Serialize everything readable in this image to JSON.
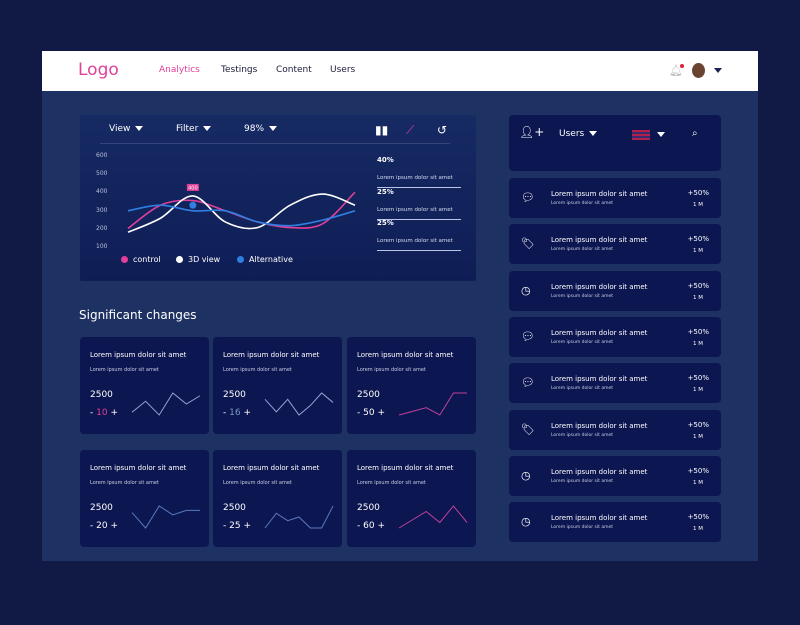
{
  "header": {
    "logo": "Logo",
    "nav": [
      "Analytics",
      "Testings",
      "Content",
      "Users"
    ],
    "active_color": "#e0409a"
  },
  "chart_toolbar": {
    "view": "View",
    "filter": "Filter",
    "zoom": "98%"
  },
  "chart_data": {
    "type": "line",
    "y_ticks": [
      600,
      500,
      400,
      300,
      200,
      100
    ],
    "ylim": [
      100,
      600
    ],
    "series": [
      {
        "name": "control",
        "color": "#e0409a",
        "values": [
          205,
          330,
          355,
          300,
          240,
          210,
          230,
          400
        ]
      },
      {
        "name": "3D view",
        "color": "#ffffff",
        "values": [
          185,
          260,
          380,
          240,
          210,
          330,
          390,
          330
        ]
      },
      {
        "name": "Alternative",
        "color": "#2f7fe0",
        "values": [
          300,
          330,
          300,
          300,
          240,
          220,
          250,
          300
        ]
      }
    ],
    "tooltip": "400"
  },
  "stats": [
    {
      "value": "40%",
      "label": "Lorem ipsum dolor sit amet"
    },
    {
      "value": "25%",
      "label": "Lorem ipsum dolor sit amet"
    },
    {
      "value": "25%",
      "label": "Lorem ipsum dolor sit amet"
    }
  ],
  "section_title": "Significant changes",
  "cards": [
    {
      "title": "Lorem ipsum dolor sit amet",
      "sub": "Lorem ipsum dolor sit amet",
      "num": "2500",
      "minus": "-",
      "count": "10",
      "plus": "+",
      "count_color": "#e0409a",
      "spark_color": "#8fa3d8",
      "spark": [
        2,
        6,
        1,
        9,
        5,
        8
      ]
    },
    {
      "title": "Lorem ipsum dolor sit amet",
      "sub": "Lorem ipsum dolor sit amet",
      "num": "2500",
      "minus": "-",
      "count": "16",
      "plus": "+",
      "count_color": "#7f93c9",
      "spark_color": "#8fa3d8",
      "spark": [
        7,
        3,
        7,
        2,
        5,
        9,
        6
      ]
    },
    {
      "title": "Lorem ipsum dolor sit amet",
      "sub": "Lorem ipsum dolor sit amet",
      "num": "2500",
      "minus": "-",
      "count": "50",
      "plus": "+",
      "count_color": "#ffffff",
      "spark_color": "#c0409a",
      "spark": [
        2,
        3,
        4,
        2,
        8,
        8
      ]
    },
    {
      "title": "Lorem ipsum dolor sit amet",
      "sub": "Lorem ipsum dolor sit amet",
      "num": "2500",
      "minus": "-",
      "count": "20",
      "plus": "+",
      "count_color": "#ffffff",
      "spark_color": "#5a78c0",
      "spark": [
        8,
        1,
        11,
        7,
        9,
        9
      ]
    },
    {
      "title": "Lorem ipsum dolor sit amet",
      "sub": "Lorem ipsum dolor sit amet",
      "num": "2500",
      "minus": "-",
      "count": "25",
      "plus": "+",
      "count_color": "#ffffff",
      "spark_color": "#5a78c0",
      "spark": [
        1,
        5,
        3,
        4,
        1,
        1,
        7
      ]
    },
    {
      "title": "Lorem ipsum dolor sit amet",
      "sub": "Lorem ipsum dolor sit amet",
      "num": "2500",
      "minus": "-",
      "count": "60",
      "plus": "+",
      "count_color": "#ffffff",
      "spark_color": "#c0409a",
      "spark": [
        1,
        4,
        7,
        3,
        9,
        3
      ]
    }
  ],
  "users_panel": {
    "label": "Users"
  },
  "rows": [
    {
      "icon": "chat",
      "title": "Lorem ipsum dolor sit amet",
      "sub": "Lorem ipsum dolor sit amet",
      "pct": "+50%",
      "amt": "1 M"
    },
    {
      "icon": "tag",
      "title": "Lorem ipsum dolor sit amet",
      "sub": "Lorem ipsum dolor sit amet",
      "pct": "+50%",
      "amt": "1 M"
    },
    {
      "icon": "clock",
      "title": "Lorem ipsum dolor sit amet",
      "sub": "Lorem ipsum dolor sit amet",
      "pct": "+50%",
      "amt": "1 M"
    },
    {
      "icon": "chat",
      "title": "Lorem ipsum dolor sit amet",
      "sub": "Lorem ipsum dolor sit amet",
      "pct": "+50%",
      "amt": "1 M"
    },
    {
      "icon": "chat",
      "title": "Lorem ipsum dolor sit amet",
      "sub": "Lorem ipsum dolor sit amet",
      "pct": "+50%",
      "amt": "1 M"
    },
    {
      "icon": "tag",
      "title": "Lorem ipsum dolor sit amet",
      "sub": "Lorem ipsum dolor sit amet",
      "pct": "+50%",
      "amt": "1 M"
    },
    {
      "icon": "clock",
      "title": "Lorem ipsum dolor sit amet",
      "sub": "Lorem ipsum dolor sit amet",
      "pct": "+50%",
      "amt": "1 M"
    },
    {
      "icon": "clock",
      "title": "Lorem ipsum dolor sit amet",
      "sub": "Lorem ipsum dolor sit amet",
      "pct": "+50%",
      "amt": "1 M"
    }
  ]
}
